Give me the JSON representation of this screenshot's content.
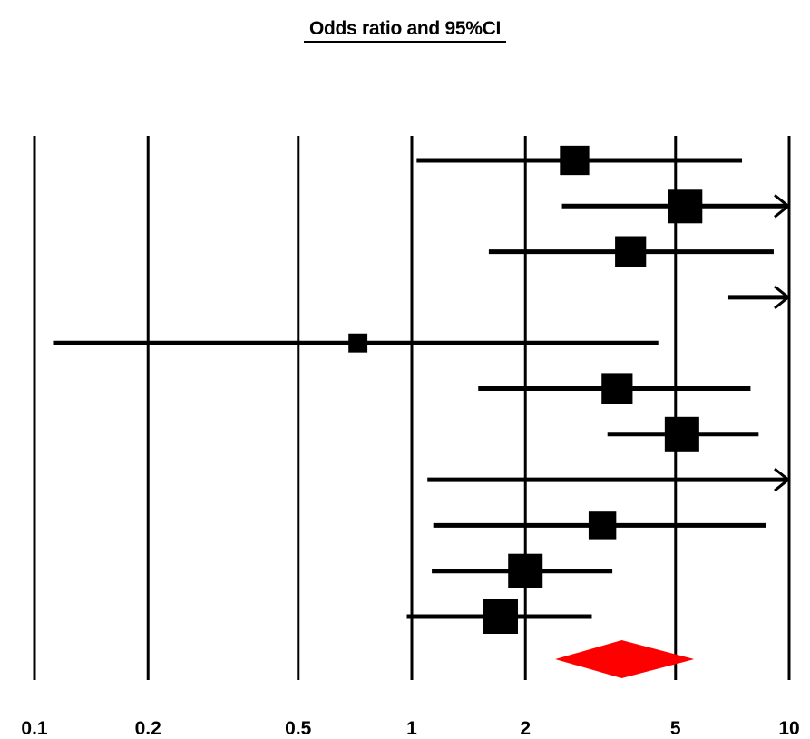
{
  "chart_data": {
    "type": "forest",
    "title": "Odds ratio and 95%CI",
    "xscale": "log",
    "xlim": [
      0.1,
      10
    ],
    "xticks": [
      0.1,
      0.2,
      0.5,
      1,
      2,
      5,
      10
    ],
    "xtick_labels": [
      "0.1",
      "0.2",
      "0.5",
      "1",
      "2",
      "5",
      "10"
    ],
    "grid": "vertical lines at ticks",
    "marker_color": "#000000",
    "summary_color": "#ff0000",
    "studies": [
      {
        "or": 2.7,
        "lower": 1.03,
        "upper": 7.5,
        "weight": 0.85,
        "upper_arrow": false
      },
      {
        "or": 5.3,
        "lower": 2.5,
        "upper": 10,
        "weight": 1.0,
        "upper_arrow": true
      },
      {
        "or": 3.8,
        "lower": 1.6,
        "upper": 9.1,
        "weight": 0.9,
        "upper_arrow": false
      },
      {
        "or": null,
        "lower": 6.9,
        "upper": 10,
        "weight": 0,
        "upper_arrow": true
      },
      {
        "or": 0.72,
        "lower": 0.112,
        "upper": 4.5,
        "weight": 0.55,
        "upper_arrow": false
      },
      {
        "or": 3.5,
        "lower": 1.5,
        "upper": 7.9,
        "weight": 0.9,
        "upper_arrow": false
      },
      {
        "or": 5.2,
        "lower": 3.3,
        "upper": 8.3,
        "weight": 1.0,
        "upper_arrow": false
      },
      {
        "or": null,
        "lower": 1.1,
        "upper": 10,
        "weight": 0,
        "upper_arrow": true
      },
      {
        "or": 3.2,
        "lower": 1.14,
        "upper": 8.7,
        "weight": 0.8,
        "upper_arrow": false
      },
      {
        "or": 2.0,
        "lower": 1.13,
        "upper": 3.4,
        "weight": 1.0,
        "upper_arrow": false
      },
      {
        "or": 1.72,
        "lower": 0.97,
        "upper": 3.0,
        "weight": 1.0,
        "upper_arrow": false
      }
    ],
    "summary": {
      "or": 3.6,
      "lower": 2.4,
      "upper": 5.6
    }
  }
}
